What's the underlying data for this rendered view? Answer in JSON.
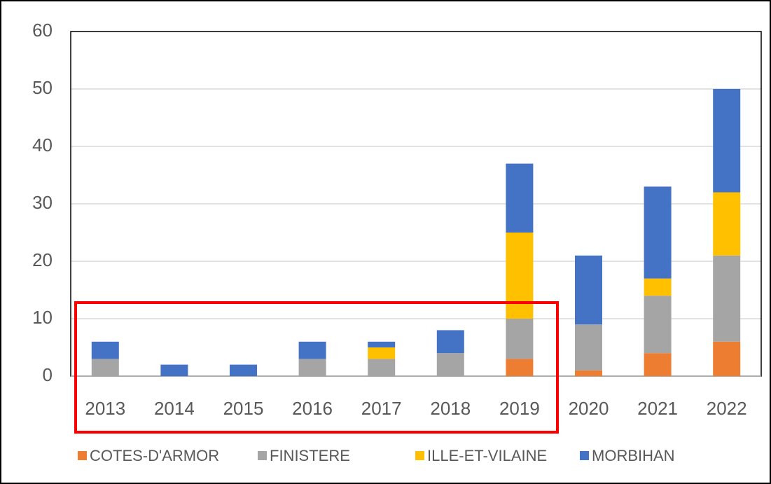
{
  "chart_data": {
    "type": "stacked_bar",
    "categories": [
      "2013",
      "2014",
      "2015",
      "2016",
      "2017",
      "2018",
      "2019",
      "2020",
      "2021",
      "2022"
    ],
    "series": [
      {
        "name": "COTES-D'ARMOR",
        "color": "#ed7d31",
        "values": [
          0,
          0,
          0,
          0,
          0,
          0,
          3,
          1,
          4,
          6
        ]
      },
      {
        "name": "FINISTERE",
        "color": "#a5a5a5",
        "values": [
          3,
          0,
          0,
          3,
          3,
          4,
          7,
          8,
          10,
          15
        ]
      },
      {
        "name": "ILLE-ET-VILAINE",
        "color": "#ffc000",
        "values": [
          0,
          0,
          0,
          0,
          2,
          0,
          15,
          0,
          3,
          11
        ]
      },
      {
        "name": "MORBIHAN",
        "color": "#4472c4",
        "values": [
          3,
          2,
          2,
          3,
          1,
          4,
          12,
          12,
          16,
          18
        ]
      }
    ],
    "ylim": [
      0,
      60
    ],
    "yticks": [
      0,
      10,
      20,
      30,
      40,
      50,
      60
    ],
    "grid": true,
    "legend": "bottom"
  }
}
